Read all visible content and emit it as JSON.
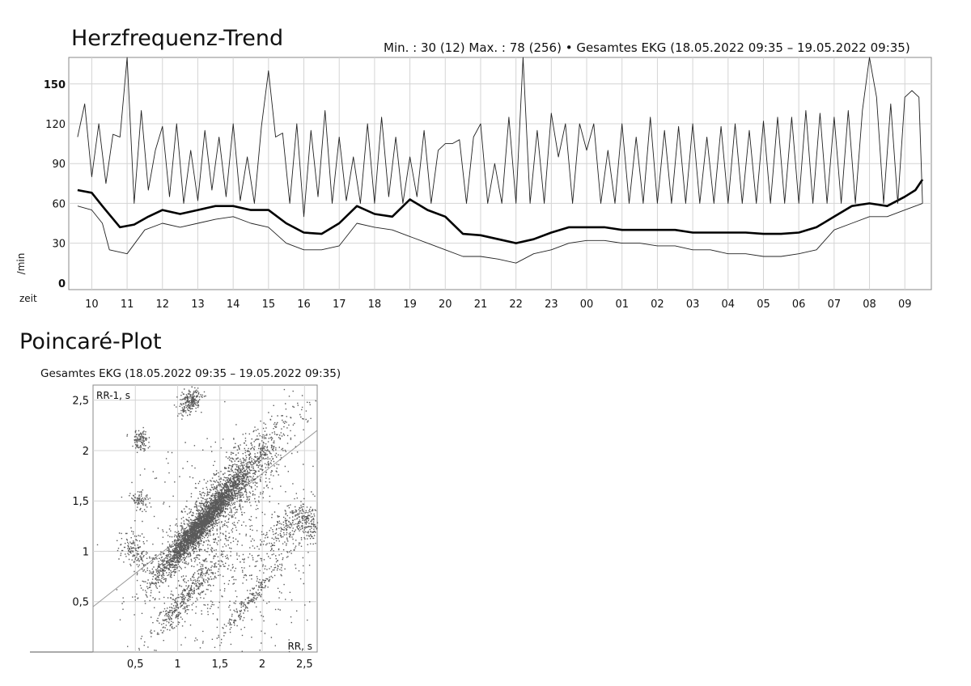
{
  "trend": {
    "title": "Herzfrequenz-Trend",
    "stats": "Min. : 30 (12)   Max. : 78 (256)  •  Gesamtes EKG (18.05.2022 09:35 – 19.05.2022 09:35)"
  },
  "poincare": {
    "title": "Poincaré-Plot",
    "subtitle": "Gesamtes EKG (18.05.2022 09:35 – 19.05.2022 09:35)"
  },
  "chart_data": [
    {
      "type": "line",
      "title": "Herzfrequenz-Trend",
      "xlabel": "zeit",
      "ylabel": "/min",
      "x_ticks": [
        "10",
        "11",
        "12",
        "13",
        "14",
        "15",
        "16",
        "17",
        "18",
        "19",
        "20",
        "21",
        "22",
        "23",
        "00",
        "01",
        "02",
        "03",
        "04",
        "05",
        "06",
        "07",
        "08",
        "09"
      ],
      "y_ticks": [
        0,
        30,
        60,
        90,
        120,
        150
      ],
      "y_bold_ticks": [
        0,
        150
      ],
      "ylim": [
        -5,
        170
      ],
      "grid": true,
      "series": [
        {
          "role": "mean",
          "x": [
            9.6,
            10.0,
            10.3,
            10.8,
            11.2,
            11.6,
            12.0,
            12.5,
            13.0,
            13.5,
            14.0,
            14.5,
            15.0,
            15.5,
            16.0,
            16.5,
            17.0,
            17.5,
            18.0,
            18.5,
            19.0,
            19.5,
            20.0,
            20.5,
            21.0,
            21.5,
            22.0,
            22.5,
            23.0,
            23.5,
            24.0,
            24.5,
            25.0,
            25.5,
            26.0,
            26.5,
            27.0,
            27.5,
            28.0,
            28.5,
            29.0,
            29.5,
            30.0,
            30.5,
            31.0,
            31.5,
            32.0,
            32.5,
            33.0,
            33.3,
            33.5
          ],
          "y": [
            70,
            68,
            58,
            42,
            44,
            50,
            55,
            52,
            55,
            58,
            58,
            55,
            55,
            45,
            38,
            37,
            45,
            58,
            52,
            50,
            63,
            55,
            50,
            37,
            36,
            33,
            30,
            33,
            38,
            42,
            42,
            42,
            40,
            40,
            40,
            40,
            38,
            38,
            38,
            38,
            37,
            37,
            38,
            42,
            50,
            58,
            60,
            58,
            65,
            70,
            78
          ]
        },
        {
          "role": "min",
          "x": [
            9.6,
            10.0,
            10.3,
            10.5,
            11.0,
            11.5,
            12.0,
            12.5,
            13.0,
            13.5,
            14.0,
            14.5,
            15.0,
            15.5,
            16.0,
            16.5,
            17.0,
            17.5,
            18.0,
            18.5,
            19.0,
            19.5,
            20.0,
            20.5,
            21.0,
            21.5,
            22.0,
            22.5,
            23.0,
            23.5,
            24.0,
            24.5,
            25.0,
            25.5,
            26.0,
            26.5,
            27.0,
            27.5,
            28.0,
            28.5,
            29.0,
            29.5,
            30.0,
            30.5,
            31.0,
            31.5,
            32.0,
            32.5,
            33.0,
            33.3,
            33.5
          ],
          "y": [
            58,
            55,
            45,
            25,
            22,
            40,
            45,
            42,
            45,
            48,
            50,
            45,
            42,
            30,
            25,
            25,
            28,
            45,
            42,
            40,
            35,
            30,
            25,
            20,
            20,
            18,
            15,
            22,
            25,
            30,
            32,
            32,
            30,
            30,
            28,
            28,
            25,
            25,
            22,
            22,
            20,
            20,
            22,
            25,
            40,
            45,
            50,
            50,
            55,
            58,
            60
          ]
        },
        {
          "role": "max",
          "x": [
            9.6,
            9.8,
            10.0,
            10.2,
            10.4,
            10.6,
            10.8,
            11.0,
            11.2,
            11.4,
            11.6,
            11.8,
            12.0,
            12.2,
            12.4,
            12.6,
            12.8,
            13.0,
            13.2,
            13.4,
            13.6,
            13.8,
            14.0,
            14.2,
            14.4,
            14.6,
            14.8,
            15.0,
            15.2,
            15.4,
            15.6,
            15.8,
            16.0,
            16.2,
            16.4,
            16.6,
            16.8,
            17.0,
            17.2,
            17.4,
            17.6,
            17.8,
            18.0,
            18.2,
            18.4,
            18.6,
            18.8,
            19.0,
            19.2,
            19.4,
            19.6,
            19.8,
            20.0,
            20.2,
            20.4,
            20.6,
            20.8,
            21.0,
            21.2,
            21.4,
            21.6,
            21.8,
            22.0,
            22.2,
            22.4,
            22.6,
            22.8,
            23.0,
            23.2,
            23.4,
            23.6,
            23.8,
            24.0,
            24.2,
            24.4,
            24.6,
            24.8,
            25.0,
            25.2,
            25.4,
            25.6,
            25.8,
            26.0,
            26.2,
            26.4,
            26.6,
            26.8,
            27.0,
            27.2,
            27.4,
            27.6,
            27.8,
            28.0,
            28.2,
            28.4,
            28.6,
            28.8,
            29.0,
            29.2,
            29.4,
            29.6,
            29.8,
            30.0,
            30.2,
            30.4,
            30.6,
            30.8,
            31.0,
            31.2,
            31.4,
            31.6,
            31.8,
            32.0,
            32.2,
            32.4,
            32.6,
            32.8,
            33.0,
            33.2,
            33.4,
            33.5
          ],
          "y": [
            110,
            135,
            80,
            120,
            75,
            112,
            110,
            170,
            60,
            130,
            70,
            100,
            118,
            65,
            120,
            60,
            100,
            62,
            115,
            70,
            110,
            65,
            120,
            62,
            95,
            60,
            118,
            160,
            110,
            113,
            60,
            120,
            50,
            115,
            65,
            130,
            60,
            110,
            62,
            95,
            60,
            120,
            60,
            125,
            65,
            110,
            60,
            95,
            65,
            115,
            60,
            100,
            105,
            105,
            108,
            60,
            110,
            120,
            60,
            90,
            60,
            125,
            60,
            170,
            60,
            115,
            60,
            128,
            95,
            120,
            60,
            120,
            100,
            120,
            60,
            100,
            60,
            120,
            60,
            110,
            60,
            125,
            60,
            115,
            60,
            118,
            60,
            120,
            60,
            110,
            60,
            118,
            60,
            120,
            60,
            115,
            60,
            122,
            60,
            125,
            60,
            125,
            60,
            130,
            60,
            128,
            60,
            125,
            60,
            130,
            60,
            130,
            170,
            140,
            60,
            135,
            60,
            140,
            145,
            140,
            60
          ]
        }
      ]
    },
    {
      "type": "scatter",
      "title": "Poincaré-Plot",
      "subtitle": "Gesamtes EKG (18.05.2022 09:35 – 19.05.2022 09:35)",
      "xlabel": "RR, s",
      "ylabel": "RR-1, s",
      "x_ticks": [
        "0,5",
        "1",
        "1,5",
        "2",
        "2,5"
      ],
      "y_ticks": [
        "0,5",
        "1",
        "1,5",
        "2",
        "2,5"
      ],
      "x_tick_values": [
        0.5,
        1.0,
        1.5,
        2.0,
        2.5
      ],
      "y_tick_values": [
        0.5,
        1.0,
        1.5,
        2.0,
        2.5
      ],
      "xlim": [
        0.0,
        2.65
      ],
      "ylim": [
        0.0,
        2.65
      ],
      "grid": true,
      "identity_line": true,
      "clusters": [
        {
          "x": 1.25,
          "y": 1.25,
          "spread_diag": 0.35,
          "spread_perp": 0.05,
          "count": 2600
        },
        {
          "x": 1.6,
          "y": 1.6,
          "spread_diag": 0.5,
          "spread_perp": 0.12,
          "count": 1400
        },
        {
          "x": 0.55,
          "y": 2.1,
          "spread_diag": 0.05,
          "spread_perp": 0.05,
          "count": 120
        },
        {
          "x": 0.55,
          "y": 1.5,
          "spread_diag": 0.05,
          "spread_perp": 0.05,
          "count": 80
        },
        {
          "x": 0.5,
          "y": 1.0,
          "spread_diag": 0.08,
          "spread_perp": 0.12,
          "count": 160
        },
        {
          "x": 1.15,
          "y": 2.5,
          "spread_diag": 0.08,
          "spread_perp": 0.05,
          "count": 220
        },
        {
          "x": 1.1,
          "y": 0.55,
          "spread_diag": 0.3,
          "spread_perp": 0.06,
          "count": 420
        },
        {
          "x": 1.9,
          "y": 0.57,
          "spread_diag": 0.3,
          "spread_perp": 0.03,
          "count": 180
        },
        {
          "x": 2.5,
          "y": 1.3,
          "spread_diag": 0.08,
          "spread_perp": 0.1,
          "count": 200
        },
        {
          "x": 2.2,
          "y": 1.2,
          "spread_diag": 0.15,
          "spread_perp": 0.08,
          "count": 140
        },
        {
          "x": 1.6,
          "y": 1.0,
          "spread_diag": 0.5,
          "spread_perp": 0.5,
          "count": 700
        }
      ]
    }
  ]
}
